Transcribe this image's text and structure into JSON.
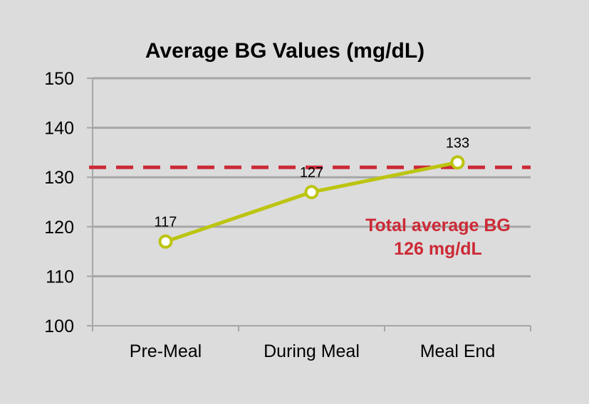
{
  "chart_data": {
    "type": "line",
    "title": "Average BG Values (mg/dL)",
    "xlabel": "",
    "ylabel": "",
    "categories": [
      "Pre-Meal",
      "During Meal",
      "Meal End"
    ],
    "series": [
      {
        "values": [
          117,
          127,
          133
        ],
        "color": "#bcc410"
      }
    ],
    "ylim": [
      100,
      150
    ],
    "yticks": [
      100,
      110,
      120,
      130,
      140,
      150
    ],
    "grid": true,
    "reference_line": {
      "value": 132,
      "color": "#cc2a36",
      "style": "dashed"
    },
    "annotation": {
      "line1": "Total average BG",
      "line2": "126 mg/dL",
      "color": "#cc2a36"
    }
  }
}
